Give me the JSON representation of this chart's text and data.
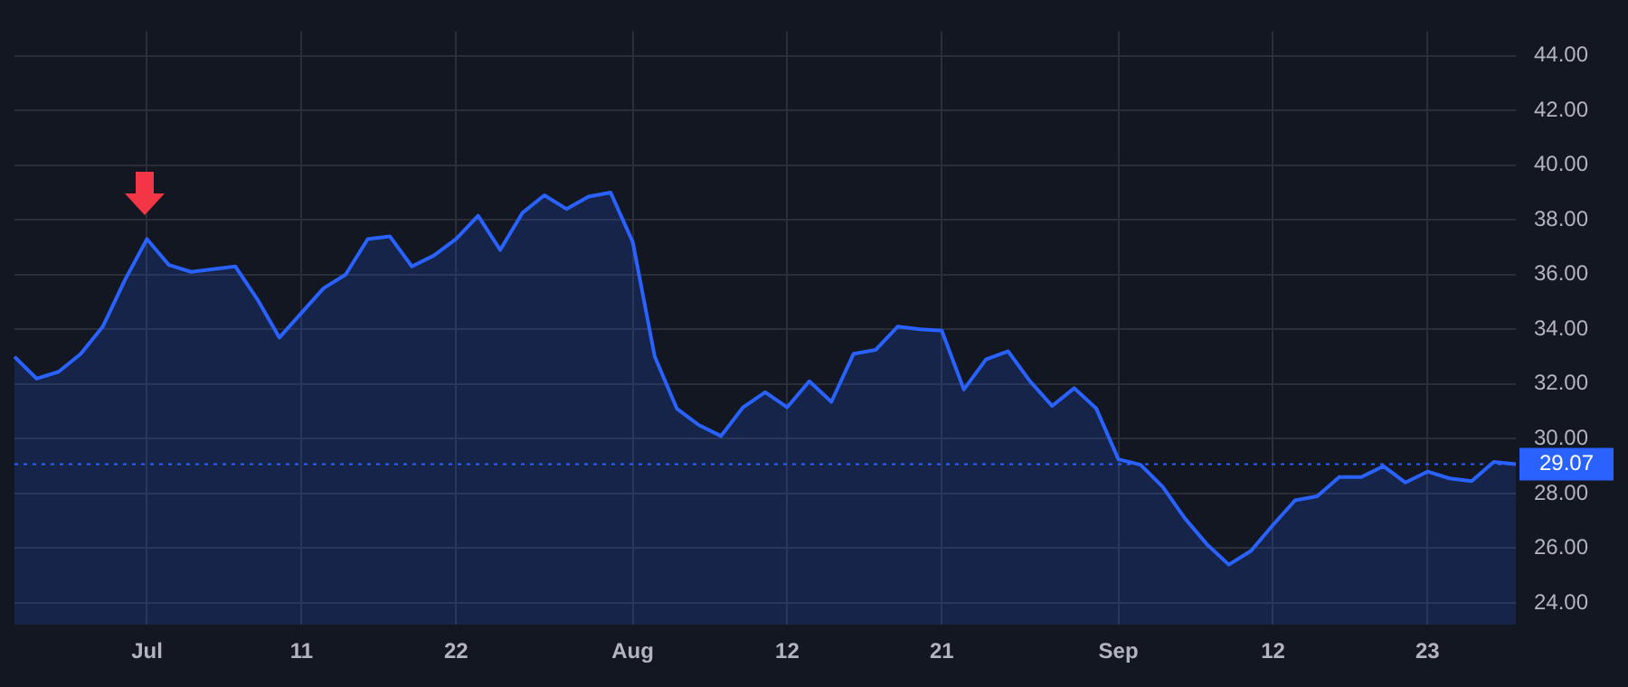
{
  "chart_data": {
    "type": "area",
    "categories": [
      null,
      null,
      null,
      null,
      null,
      null,
      "Jul",
      null,
      null,
      null,
      null,
      null,
      null,
      "11",
      null,
      null,
      null,
      null,
      null,
      null,
      "22",
      null,
      null,
      null,
      null,
      null,
      null,
      null,
      "Aug",
      null,
      null,
      null,
      null,
      null,
      null,
      "12",
      null,
      null,
      null,
      null,
      null,
      null,
      "21",
      null,
      null,
      null,
      null,
      null,
      null,
      null,
      "Sep",
      null,
      null,
      null,
      null,
      null,
      null,
      "12",
      null,
      null,
      null,
      null,
      null,
      null,
      "23",
      null,
      null,
      null,
      null
    ],
    "series": [
      {
        "color": "#2962ff",
        "values": [
          33.0,
          32.2,
          32.45,
          33.1,
          34.1,
          35.8,
          37.3,
          36.35,
          36.1,
          36.2,
          36.3,
          35.1,
          33.7,
          34.6,
          35.5,
          36.0,
          37.3,
          37.4,
          36.3,
          36.7,
          37.3,
          38.15,
          36.9,
          38.25,
          38.9,
          38.4,
          38.85,
          39.0,
          37.2,
          33.0,
          31.1,
          30.5,
          30.1,
          31.15,
          31.7,
          31.15,
          32.1,
          31.35,
          33.1,
          33.25,
          34.1,
          34.0,
          33.95,
          31.8,
          32.9,
          33.2,
          32.1,
          31.2,
          31.85,
          31.1,
          29.25,
          29.05,
          28.25,
          27.1,
          26.15,
          25.4,
          25.9,
          26.85,
          27.75,
          27.9,
          28.6,
          28.6,
          29.0,
          28.4,
          28.8,
          28.55,
          28.45,
          29.15,
          29.07
        ]
      }
    ],
    "ylim": [
      23.2,
      44.9
    ],
    "yticks": [
      {
        "value": 24,
        "label": "24.00"
      },
      {
        "value": 26,
        "label": "26.00"
      },
      {
        "value": 28,
        "label": "28.00"
      },
      {
        "value": 30,
        "label": "30.00"
      },
      {
        "value": 32,
        "label": "32.00"
      },
      {
        "value": 34,
        "label": "34.00"
      },
      {
        "value": 36,
        "label": "36.00"
      },
      {
        "value": 38,
        "label": "38.00"
      },
      {
        "value": 40,
        "label": "40.00"
      },
      {
        "value": 42,
        "label": "42.00"
      },
      {
        "value": 44,
        "label": "44.00"
      }
    ],
    "ref_lines": [
      {
        "axis": "y",
        "value": 29.07,
        "label": "29.07",
        "color": "#2962ff",
        "line_style": "dotted"
      }
    ],
    "grid": true,
    "legend": false,
    "marker": "none",
    "line_style": "solid"
  }
}
